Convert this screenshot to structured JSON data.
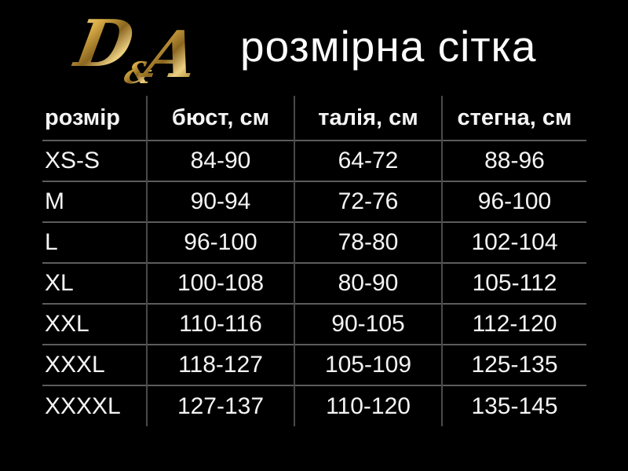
{
  "brand": {
    "logo": {
      "d": "D",
      "amp": "&",
      "a": "A"
    },
    "title": "розмірна сітка"
  },
  "chart_data": {
    "type": "table",
    "title": "розмірна сітка",
    "columns": [
      "розмір",
      "бюст, см",
      "талія, см",
      "стегна, см"
    ],
    "column_keys": [
      "size",
      "bust-cm",
      "waist-cm",
      "hips-cm"
    ],
    "rows": [
      [
        "XS-S",
        "84-90",
        "64-72",
        "88-96"
      ],
      [
        "M",
        "90-94",
        "72-76",
        "96-100"
      ],
      [
        "L",
        "96-100",
        "78-80",
        "102-104"
      ],
      [
        "XL",
        "100-108",
        "80-90",
        "105-112"
      ],
      [
        "XXL",
        "110-116",
        "90-105",
        "112-120"
      ],
      [
        "XXXL",
        "118-127",
        "105-109",
        "125-135"
      ],
      [
        "XXXXL",
        "127-137",
        "110-120",
        "135-145"
      ]
    ]
  },
  "colors": {
    "background": "#000000",
    "text": "#f4f4f4",
    "divider_vertical": "#4a4a4a",
    "divider_horizontal": "#5c5c5c",
    "gold_light": "#f6e09a",
    "gold_mid": "#cf9f3a",
    "gold_dark": "#8a651f"
  }
}
